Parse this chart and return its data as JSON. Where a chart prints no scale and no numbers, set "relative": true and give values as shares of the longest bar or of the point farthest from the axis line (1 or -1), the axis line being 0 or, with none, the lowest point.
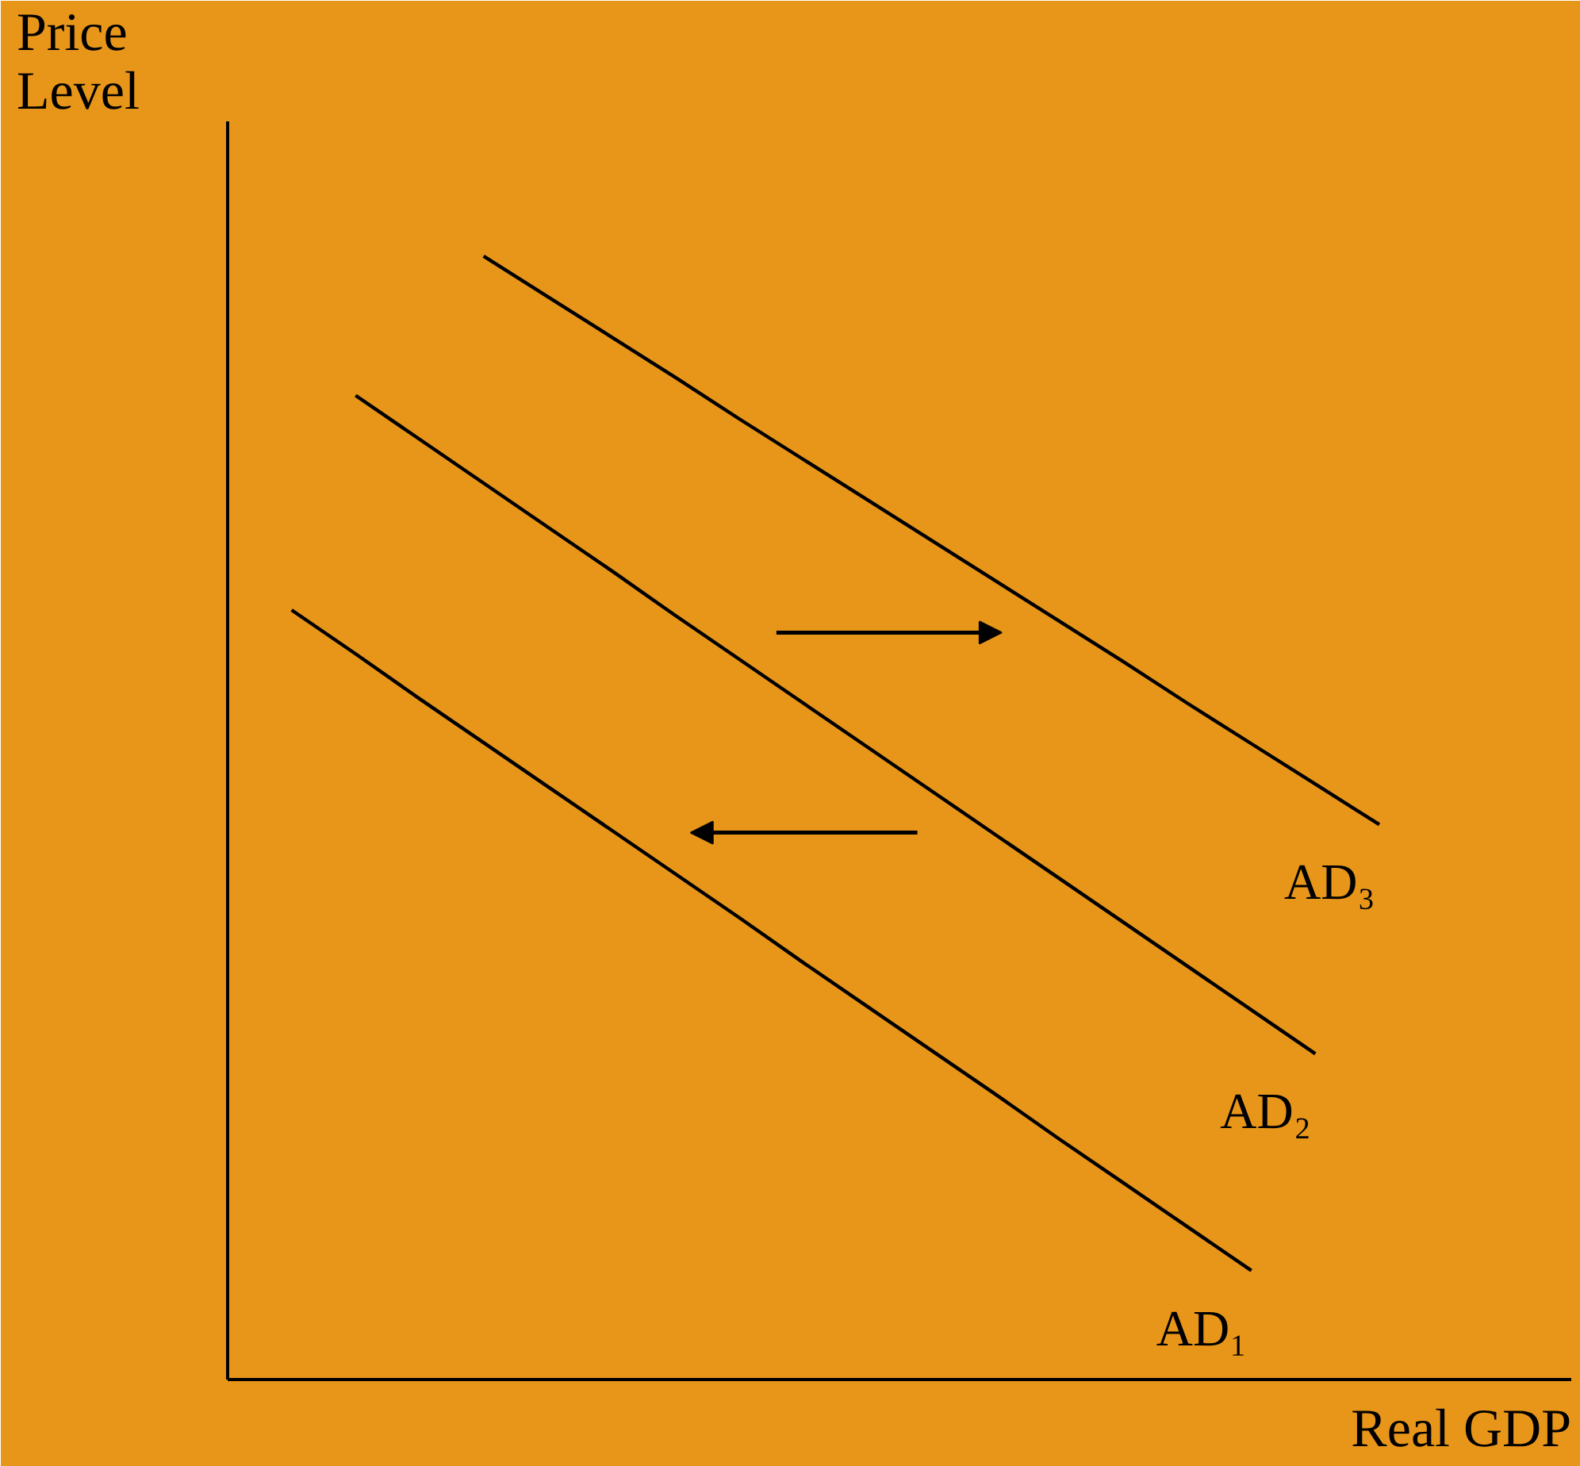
{
  "chart_data": {
    "type": "line",
    "relative": true,
    "xlabel": "Real GDP",
    "ylabel": "Price\nLevel",
    "grid": false,
    "legend": false,
    "marker": "none",
    "line_style": "solid",
    "categories": [
      null,
      null,
      null,
      null,
      null,
      null,
      null,
      null,
      null,
      null,
      null,
      null,
      null,
      null,
      null,
      null,
      null,
      null
    ],
    "series": [
      {
        "name": "AD₁",
        "color": "#000000",
        "values": [
          0.685,
          0.646,
          0.606,
          0.567,
          0.528,
          0.489,
          0.45,
          0.411,
          0.371,
          0.332,
          0.293,
          0.254,
          0.214,
          0.175,
          0.136,
          0.097,
          null,
          null
        ]
      },
      {
        "name": "AD₂",
        "color": "#000000",
        "values": [
          null,
          0.876,
          0.837,
          0.798,
          0.759,
          0.72,
          0.68,
          0.641,
          0.602,
          0.563,
          0.524,
          0.485,
          0.446,
          0.407,
          0.368,
          0.329,
          0.29,
          null
        ]
      },
      {
        "name": "AD₃",
        "color": "#000000",
        "values": [
          null,
          null,
          null,
          1.0,
          0.964,
          0.928,
          0.892,
          0.855,
          0.819,
          0.783,
          0.747,
          0.711,
          0.675,
          0.639,
          0.602,
          0.566,
          0.53,
          0.494
        ]
      }
    ]
  }
}
